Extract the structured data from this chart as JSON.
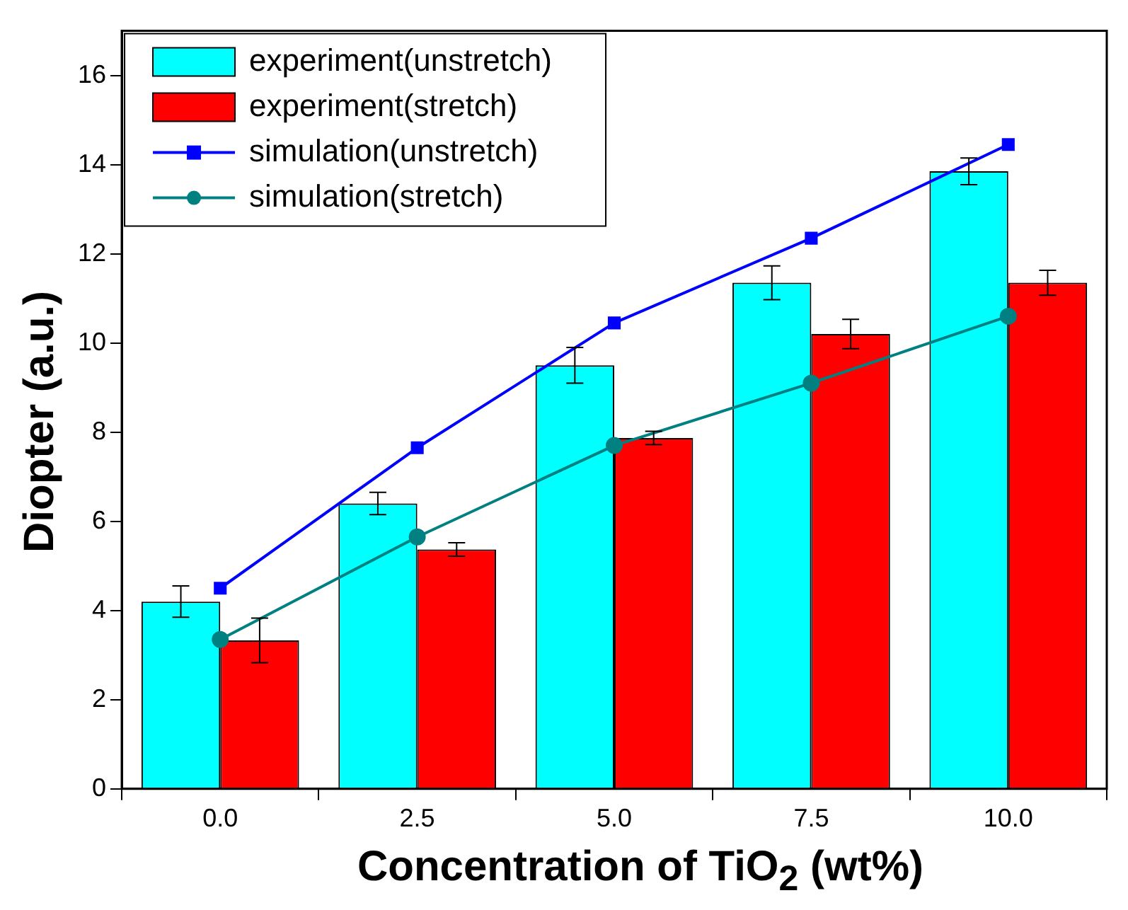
{
  "chart_data": {
    "type": "bar",
    "xlabel": "Concentration of TiO$_{2}$ (wt%)",
    "ylabel": "Diopter (a.u.)",
    "categories": [
      "0.0",
      "2.5",
      "5.0",
      "7.5",
      "10.0"
    ],
    "series": [
      {
        "name": "experiment(unstretch)",
        "color": "#00ffff",
        "values": [
          4.2,
          6.4,
          9.5,
          11.35,
          13.85
        ],
        "errors": [
          0.35,
          0.25,
          0.4,
          0.38,
          0.3
        ]
      },
      {
        "name": "experiment(stretch)",
        "color": "#ff0000",
        "values": [
          3.33,
          5.37,
          7.87,
          10.2,
          11.35
        ],
        "errors": [
          0.5,
          0.15,
          0.15,
          0.33,
          0.28
        ]
      },
      {
        "name": "simulation(unstretch)",
        "type": "line",
        "color": "#0000ff",
        "marker": "square",
        "values": [
          4.5,
          7.65,
          10.45,
          12.35,
          14.45
        ]
      },
      {
        "name": "simulation(stretch)",
        "type": "line",
        "color": "#008080",
        "marker": "circle",
        "values": [
          3.35,
          5.65,
          7.7,
          9.1,
          10.6
        ]
      }
    ],
    "ylim": [
      0,
      17
    ],
    "yticks": [
      0,
      2,
      4,
      6,
      8,
      10,
      12,
      14,
      16
    ],
    "grid": false,
    "legend": "top left"
  }
}
